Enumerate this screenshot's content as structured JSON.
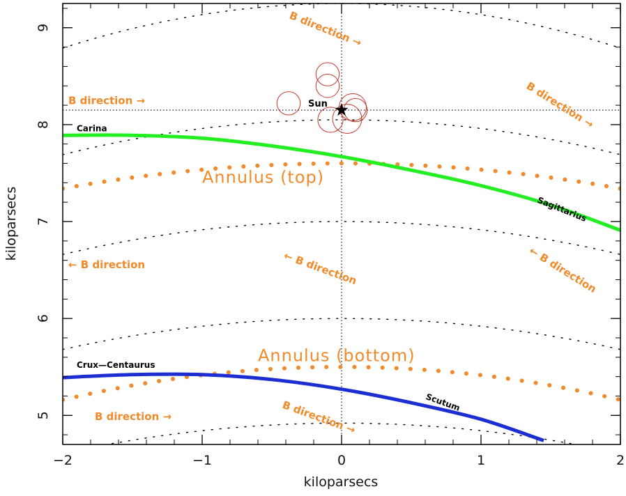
{
  "chart_data": {
    "type": "line",
    "title": "",
    "xlabel": "kiloparsecs",
    "ylabel": "kiloparsecs",
    "xlim": [
      -2,
      2
    ],
    "ylim": [
      4.7,
      9.25
    ],
    "x_ticks": [
      -2,
      -1,
      0,
      1,
      2
    ],
    "y_ticks": [
      5,
      6,
      7,
      8,
      9
    ],
    "grid": false,
    "reference_lines": {
      "vertical_x": 0,
      "horizontal_y": 8.15
    },
    "sun": {
      "label": "Sun",
      "x": 0,
      "y": 8.15
    },
    "circles": [
      {
        "x": -0.1,
        "y": 8.52,
        "r": 0.12
      },
      {
        "x": -0.1,
        "y": 8.4,
        "r": 0.12
      },
      {
        "x": -0.38,
        "y": 8.22,
        "r": 0.12
      },
      {
        "x": -0.08,
        "y": 8.05,
        "r": 0.13
      },
      {
        "x": 0.04,
        "y": 8.06,
        "r": 0.15
      },
      {
        "x": 0.08,
        "y": 8.18,
        "r": 0.14
      },
      {
        "x": 0.1,
        "y": 8.15,
        "r": 0.12
      }
    ],
    "dotted_arcs": [
      {
        "peak_y": 9.25,
        "curvature": 0.115
      },
      {
        "peak_y": 8.05,
        "curvature": 0.09
      },
      {
        "peak_y": 7.0,
        "curvature": 0.085
      },
      {
        "peak_y": 6.0,
        "curvature": 0.08
      },
      {
        "peak_y": 4.92,
        "curvature": 0.078
      }
    ],
    "series": [
      {
        "name": "Carina",
        "color": "#22ee22",
        "points": [
          [
            -2,
            7.89
          ],
          [
            -1.5,
            7.89
          ],
          [
            -1,
            7.86
          ],
          [
            -0.5,
            7.78
          ],
          [
            0,
            7.67
          ],
          [
            0.5,
            7.53
          ],
          [
            1,
            7.37
          ],
          [
            1.5,
            7.17
          ],
          [
            2,
            6.91
          ]
        ]
      },
      {
        "name": "Crux-Centaurus",
        "color": "#1a2ed1",
        "points": [
          [
            -2,
            5.39
          ],
          [
            -1.5,
            5.42
          ],
          [
            -1,
            5.42
          ],
          [
            -0.5,
            5.37
          ],
          [
            0,
            5.27
          ],
          [
            0.5,
            5.13
          ],
          [
            1,
            4.96
          ],
          [
            1.45,
            4.74
          ]
        ]
      }
    ],
    "annuli": [
      {
        "label": "Annulus (top)",
        "peak_y": 7.6,
        "curvature": 0.065
      },
      {
        "label": "Annulus (bottom)",
        "peak_y": 5.5,
        "curvature": 0.085
      }
    ],
    "annotations": [
      {
        "text": "B direction →",
        "x": -0.38,
        "y": 9.1,
        "rotate": 22,
        "style": "orange"
      },
      {
        "text": "B direction →",
        "x": -1.96,
        "y": 8.21,
        "rotate": 0,
        "style": "orange"
      },
      {
        "text": "B direction →",
        "x": 1.32,
        "y": 8.38,
        "rotate": 32,
        "style": "orange"
      },
      {
        "text": "← B direction",
        "x": -1.96,
        "y": 6.52,
        "rotate": 0,
        "style": "orange"
      },
      {
        "text": "← B direction",
        "x": -0.42,
        "y": 6.62,
        "rotate": 20,
        "style": "orange"
      },
      {
        "text": "← B direction",
        "x": 1.34,
        "y": 6.68,
        "rotate": 32,
        "style": "orange"
      },
      {
        "text": "B direction →",
        "x": -1.77,
        "y": 4.95,
        "rotate": 0,
        "style": "orange"
      },
      {
        "text": "B direction →",
        "x": -0.43,
        "y": 5.08,
        "rotate": 20,
        "style": "orange"
      },
      {
        "text": "Annulus (top)",
        "x": -1.0,
        "y": 7.4,
        "rotate": 0,
        "style": "orange-big"
      },
      {
        "text": "Annulus (bottom)",
        "x": -0.6,
        "y": 5.56,
        "rotate": 0,
        "style": "orange-big"
      },
      {
        "text": "Carina",
        "x": -1.9,
        "y": 7.93,
        "rotate": 0,
        "style": "black"
      },
      {
        "text": "Sagittarius",
        "x": 1.4,
        "y": 7.2,
        "rotate": 22,
        "style": "black"
      },
      {
        "text": "Crux—Centaurus",
        "x": -1.9,
        "y": 5.49,
        "rotate": 0,
        "style": "black"
      },
      {
        "text": "Scutum",
        "x": 0.6,
        "y": 5.17,
        "rotate": 20,
        "style": "black"
      }
    ]
  }
}
